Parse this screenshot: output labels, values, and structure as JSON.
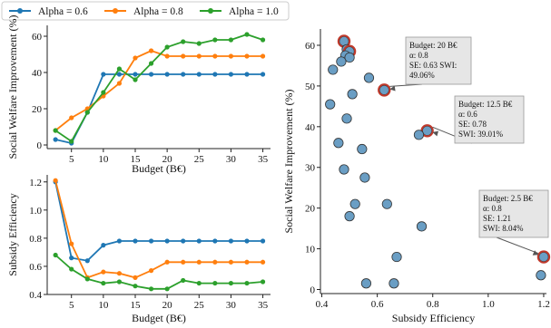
{
  "legend": [
    {
      "label": "Alpha = 0.6",
      "color": "#1f77b4"
    },
    {
      "label": "Alpha = 0.8",
      "color": "#ff7f0e"
    },
    {
      "label": "Alpha = 1.0",
      "color": "#2ca02c"
    }
  ],
  "chart_data": [
    {
      "id": "social_welfare_vs_budget",
      "type": "line",
      "xlabel": "Budget (B€)",
      "ylabel": "Social Welfare Improvement (%)",
      "x": [
        2.5,
        5,
        7.5,
        10,
        12.5,
        15,
        17.5,
        20,
        22.5,
        25,
        27.5,
        30,
        32.5,
        35
      ],
      "xticks": [
        5,
        10,
        15,
        20,
        25,
        30,
        35
      ],
      "yticks": [
        0,
        20,
        40,
        60
      ],
      "xlim": [
        1.2,
        36.2
      ],
      "ylim": [
        -2,
        66
      ],
      "grid": false,
      "series": [
        {
          "name": "Alpha = 0.6",
          "color": "#1f77b4",
          "values": [
            3,
            1,
            18,
            39,
            39,
            39,
            39,
            39,
            39,
            39,
            39,
            39,
            39,
            39
          ]
        },
        {
          "name": "Alpha = 0.8",
          "color": "#ff7f0e",
          "values": [
            8,
            15,
            20,
            27,
            34,
            48,
            52,
            49,
            49,
            49,
            49,
            49,
            49,
            49
          ]
        },
        {
          "name": "Alpha = 1.0",
          "color": "#2ca02c",
          "values": [
            8,
            2,
            18,
            29,
            42,
            36,
            45,
            54,
            57,
            56,
            58,
            58,
            61,
            58
          ]
        }
      ]
    },
    {
      "id": "subsidy_efficiency_vs_budget",
      "type": "line",
      "xlabel": "Budget (B€)",
      "ylabel": "Subsidy Efficiency",
      "x": [
        2.5,
        5,
        7.5,
        10,
        12.5,
        15,
        17.5,
        20,
        22.5,
        25,
        27.5,
        30,
        32.5,
        35
      ],
      "xticks": [
        5,
        10,
        15,
        20,
        25,
        30,
        35
      ],
      "yticks": [
        0.4,
        0.6,
        0.8,
        1.0,
        1.2
      ],
      "xlim": [
        1.2,
        36.2
      ],
      "ylim": [
        0.4,
        1.25
      ],
      "grid": false,
      "series": [
        {
          "name": "Alpha = 0.6",
          "color": "#1f77b4",
          "values": [
            1.2,
            0.66,
            0.64,
            0.75,
            0.78,
            0.78,
            0.78,
            0.78,
            0.78,
            0.78,
            0.78,
            0.78,
            0.78,
            0.78
          ]
        },
        {
          "name": "Alpha = 0.8",
          "color": "#ff7f0e",
          "values": [
            1.21,
            0.76,
            0.52,
            0.56,
            0.55,
            0.52,
            0.57,
            0.63,
            0.63,
            0.63,
            0.63,
            0.63,
            0.63,
            0.63
          ]
        },
        {
          "name": "Alpha = 1.0",
          "color": "#2ca02c",
          "values": [
            0.68,
            0.58,
            0.51,
            0.48,
            0.49,
            0.46,
            0.44,
            0.44,
            0.5,
            0.48,
            0.48,
            0.48,
            0.48,
            0.49
          ]
        }
      ]
    },
    {
      "id": "welfare_vs_efficiency",
      "type": "scatter",
      "xlabel": "Subsidy Efficiency",
      "ylabel": "Social Welfare Improvement (%)",
      "xticks": [
        0.4,
        0.6,
        0.8,
        1.0,
        1.2
      ],
      "yticks": [
        0,
        10,
        20,
        30,
        40,
        50,
        60
      ],
      "xlim": [
        0.395,
        1.21
      ],
      "ylim": [
        -1,
        64
      ],
      "grid": false,
      "point_color": "#6a9ec4",
      "highlight_color": "#c0392b",
      "points": [
        {
          "x": 0.48,
          "y": 61,
          "highlight": true
        },
        {
          "x": 0.49,
          "y": 59
        },
        {
          "x": 0.5,
          "y": 58.5,
          "highlight": true
        },
        {
          "x": 0.485,
          "y": 57.5
        },
        {
          "x": 0.5,
          "y": 57
        },
        {
          "x": 0.47,
          "y": 56
        },
        {
          "x": 0.44,
          "y": 54
        },
        {
          "x": 0.57,
          "y": 52
        },
        {
          "x": 0.625,
          "y": 49,
          "highlight": true
        },
        {
          "x": 0.51,
          "y": 48
        },
        {
          "x": 0.43,
          "y": 45.5
        },
        {
          "x": 0.49,
          "y": 42
        },
        {
          "x": 0.78,
          "y": 39,
          "highlight": true
        },
        {
          "x": 0.75,
          "y": 38
        },
        {
          "x": 0.46,
          "y": 36
        },
        {
          "x": 0.545,
          "y": 34.5
        },
        {
          "x": 0.48,
          "y": 29.5
        },
        {
          "x": 0.555,
          "y": 27.5
        },
        {
          "x": 0.635,
          "y": 21
        },
        {
          "x": 0.52,
          "y": 21
        },
        {
          "x": 0.5,
          "y": 18
        },
        {
          "x": 0.76,
          "y": 15.5
        },
        {
          "x": 1.2,
          "y": 8,
          "highlight": true
        },
        {
          "x": 0.67,
          "y": 8
        },
        {
          "x": 1.19,
          "y": 3.5
        },
        {
          "x": 0.56,
          "y": 1.5
        },
        {
          "x": 0.66,
          "y": 1.5
        }
      ],
      "annotations": [
        {
          "lines": [
            "Budget: 20 B€",
            "α: 0.8",
            "SE: 0.63 SWI:",
            "49.06%"
          ],
          "target": {
            "x": 0.625,
            "y": 49
          }
        },
        {
          "lines": [
            "Budget: 12.5 B€",
            "α: 0.6",
            "SE: 0.78",
            "SWI: 39.01%"
          ],
          "target": {
            "x": 0.78,
            "y": 39
          }
        },
        {
          "lines": [
            "Budget: 2.5 B€",
            "α: 0.8",
            "SE: 1.21",
            "SWI: 8.04%"
          ],
          "target": {
            "x": 1.2,
            "y": 8
          }
        }
      ]
    }
  ]
}
